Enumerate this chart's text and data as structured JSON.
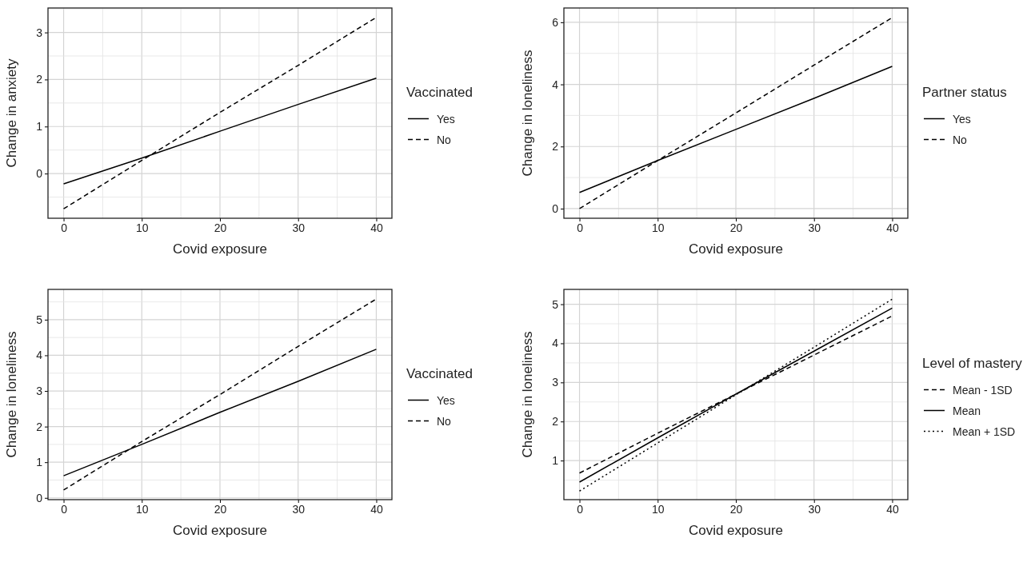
{
  "chart_data": [
    {
      "type": "line",
      "xlabel": "Covid exposure",
      "ylabel": "Change in anxiety",
      "legend_title": "Vaccinated",
      "x": [
        0,
        10,
        20,
        30,
        40
      ],
      "xlim": [
        -2,
        42
      ],
      "xticks": [
        0,
        10,
        20,
        30,
        40
      ],
      "ylim": [
        -0.95,
        3.52
      ],
      "yticks": [
        0,
        1,
        2,
        3
      ],
      "grid": true,
      "legend": "right",
      "series": [
        {
          "name": "Yes",
          "color": "#000000",
          "line_style": "solid",
          "values": [
            -0.22,
            0.33,
            0.9,
            1.47,
            2.03
          ]
        },
        {
          "name": "No",
          "color": "#000000",
          "line_style": "dashed",
          "values": [
            -0.75,
            0.28,
            1.3,
            2.3,
            3.32
          ]
        }
      ]
    },
    {
      "type": "line",
      "xlabel": "Covid exposure",
      "ylabel": "Change in loneliness",
      "legend_title": "Partner status",
      "x": [
        0,
        10,
        20,
        30,
        40
      ],
      "xlim": [
        -2,
        42
      ],
      "xticks": [
        0,
        10,
        20,
        30,
        40
      ],
      "ylim": [
        -0.31,
        6.46
      ],
      "yticks": [
        0,
        2,
        4,
        6
      ],
      "grid": true,
      "legend": "right",
      "series": [
        {
          "name": "Yes",
          "color": "#000000",
          "line_style": "solid",
          "values": [
            0.52,
            1.55,
            2.55,
            3.55,
            4.58
          ]
        },
        {
          "name": "No",
          "color": "#000000",
          "line_style": "dashed",
          "values": [
            0,
            1.55,
            3.08,
            4.62,
            6.15
          ]
        }
      ]
    },
    {
      "type": "line",
      "xlabel": "Covid exposure",
      "ylabel": "Change in loneliness",
      "legend_title": "Vaccinated",
      "x": [
        0,
        10,
        20,
        30,
        40
      ],
      "xlim": [
        -2,
        42
      ],
      "xticks": [
        0,
        10,
        20,
        30,
        40
      ],
      "ylim": [
        -0.05,
        5.85
      ],
      "yticks": [
        0,
        1,
        2,
        3,
        4,
        5
      ],
      "grid": true,
      "legend": "right",
      "series": [
        {
          "name": "Yes",
          "color": "#000000",
          "line_style": "solid",
          "values": [
            0.62,
            1.5,
            2.4,
            3.27,
            4.17
          ]
        },
        {
          "name": "No",
          "color": "#000000",
          "line_style": "dashed",
          "values": [
            0.22,
            1.58,
            2.9,
            4.25,
            5.58
          ]
        }
      ]
    },
    {
      "type": "line",
      "xlabel": "Covid exposure",
      "ylabel": "Change in loneliness",
      "legend_title": "Level of mastery",
      "x": [
        0,
        10,
        20,
        30,
        40
      ],
      "xlim": [
        -2,
        42
      ],
      "xticks": [
        0,
        10,
        20,
        30,
        40
      ],
      "ylim": [
        0,
        5.38
      ],
      "yticks": [
        1,
        2,
        3,
        4,
        5
      ],
      "grid": true,
      "legend": "right",
      "series": [
        {
          "name": "Mean - 1SD",
          "color": "#000000",
          "line_style": "dashed",
          "values": [
            0.68,
            1.7,
            2.7,
            3.7,
            4.7
          ]
        },
        {
          "name": "Mean",
          "color": "#000000",
          "line_style": "solid",
          "values": [
            0.45,
            1.58,
            2.7,
            3.8,
            4.9
          ]
        },
        {
          "name": "Mean + 1SD",
          "color": "#000000",
          "line_style": "dotted",
          "values": [
            0.22,
            1.45,
            2.68,
            3.9,
            5.13
          ]
        }
      ]
    }
  ]
}
